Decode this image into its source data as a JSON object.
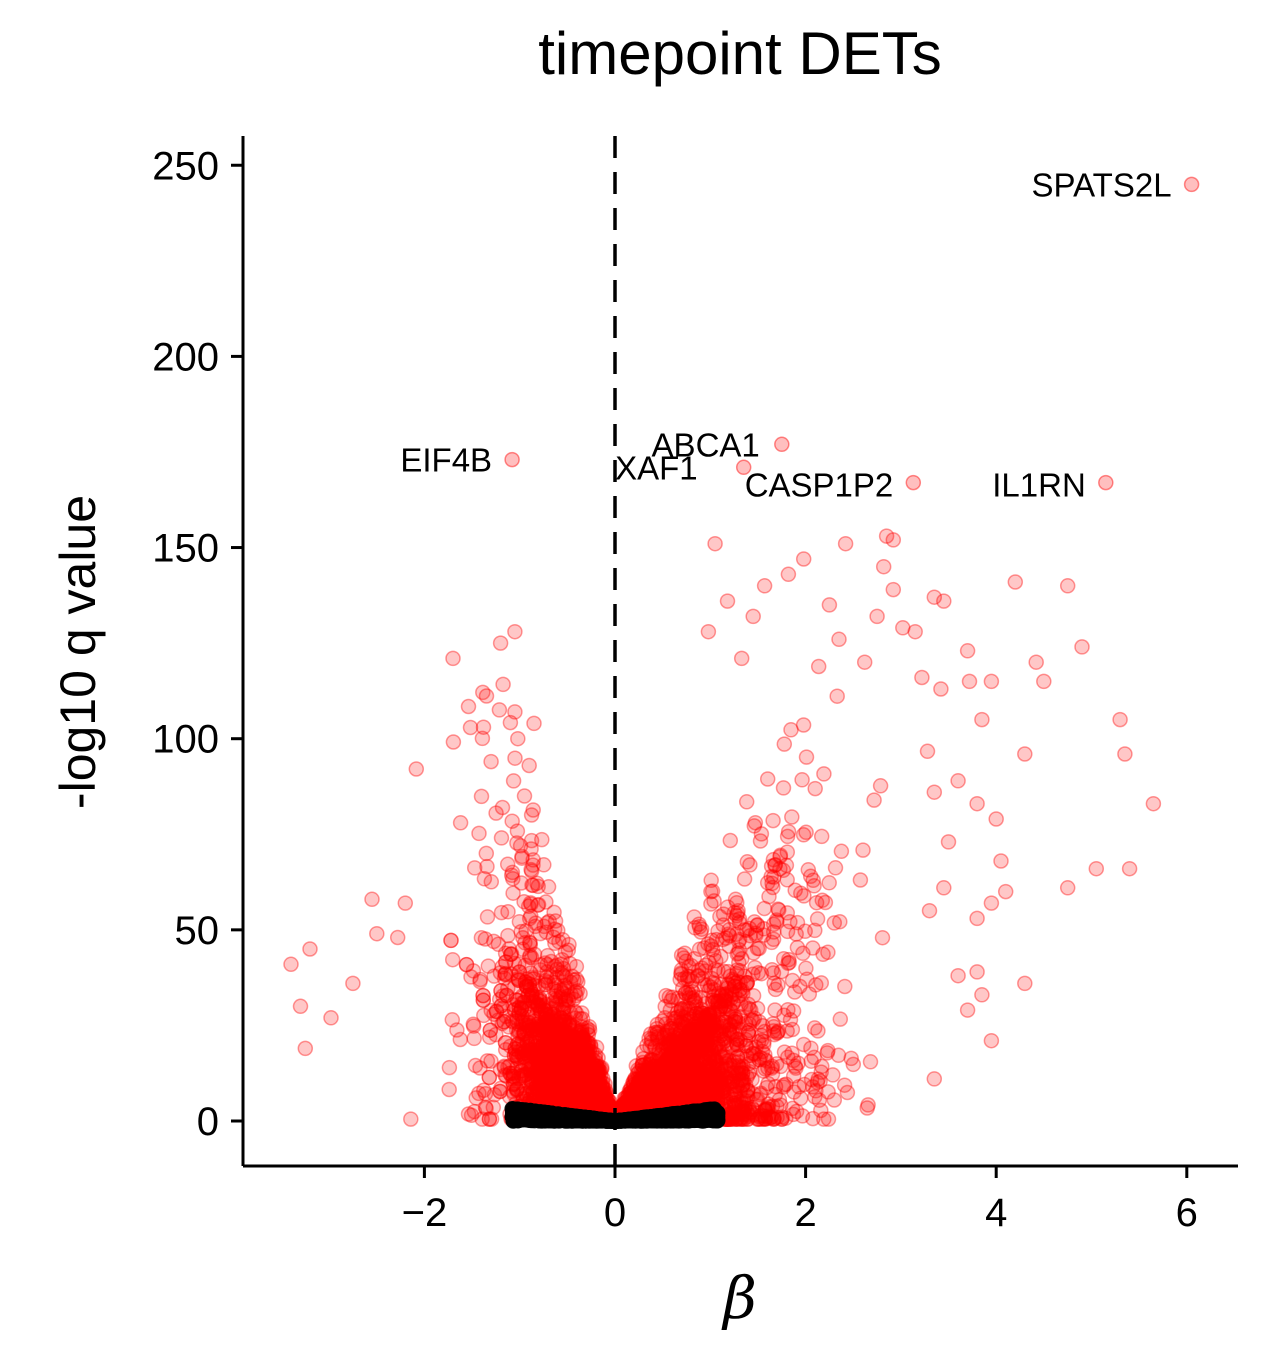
{
  "chart_data": {
    "type": "scatter",
    "title": "timepoint DETs",
    "xlabel": "β",
    "ylabel": "-log10 q value",
    "xlim": [
      -3.8,
      6.5
    ],
    "ylim": [
      -12,
      258
    ],
    "x_ticks": [
      -2,
      0,
      2,
      4,
      6
    ],
    "x_tick_labels": [
      "−2",
      "0",
      "2",
      "4",
      "6"
    ],
    "y_ticks": [
      0,
      50,
      100,
      150,
      200,
      250
    ],
    "y_tick_labels": [
      "0",
      "50",
      "100",
      "150",
      "200",
      "250"
    ],
    "reference_line": {
      "x": 0,
      "style": "dashed"
    },
    "grid": false,
    "legend": "none",
    "colors": {
      "significant": "#ff0000",
      "not_significant": "#000000"
    },
    "labeled_points": [
      {
        "label": "SPATS2L",
        "x": 6.05,
        "y": 245
      },
      {
        "label": "EIF4B",
        "x": -1.08,
        "y": 173
      },
      {
        "label": "ABCA1",
        "x": 1.75,
        "y": 177
      },
      {
        "label": "XAF1",
        "x": 1.35,
        "y": 171
      },
      {
        "label": "CASP1P2",
        "x": 3.13,
        "y": 167
      },
      {
        "label": "IL1RN",
        "x": 5.15,
        "y": 167
      }
    ],
    "outlier_points": [
      [
        -3.4,
        41
      ],
      [
        -3.2,
        45
      ],
      [
        -3.3,
        30
      ],
      [
        -3.25,
        19
      ],
      [
        -2.98,
        27
      ],
      [
        -2.75,
        36
      ],
      [
        -2.55,
        58
      ],
      [
        -2.5,
        49
      ],
      [
        -2.28,
        48
      ],
      [
        -2.2,
        57
      ],
      [
        -1.7,
        121
      ],
      [
        -1.62,
        78
      ],
      [
        -1.38,
        103
      ],
      [
        -1.3,
        94
      ],
      [
        -1.2,
        125
      ],
      [
        -1.05,
        128
      ],
      [
        -1.18,
        82
      ],
      [
        -1.05,
        107
      ],
      [
        -1.02,
        100
      ],
      [
        -0.95,
        85
      ],
      [
        -0.9,
        93
      ],
      [
        -1.35,
        70
      ],
      [
        -0.85,
        104
      ],
      [
        1.05,
        151
      ],
      [
        0.98,
        128
      ],
      [
        1.18,
        136
      ],
      [
        1.33,
        121
      ],
      [
        1.45,
        132
      ],
      [
        1.57,
        140
      ],
      [
        1.82,
        143
      ],
      [
        1.98,
        147
      ],
      [
        2.25,
        135
      ],
      [
        2.42,
        151
      ],
      [
        2.35,
        126
      ],
      [
        2.62,
        120
      ],
      [
        2.75,
        132
      ],
      [
        2.85,
        153
      ],
      [
        2.92,
        152
      ],
      [
        2.82,
        145
      ],
      [
        2.92,
        139
      ],
      [
        3.02,
        129
      ],
      [
        3.15,
        128
      ],
      [
        3.22,
        116
      ],
      [
        3.35,
        137
      ],
      [
        3.45,
        136
      ],
      [
        3.42,
        113
      ],
      [
        3.7,
        123
      ],
      [
        3.72,
        115
      ],
      [
        3.85,
        105
      ],
      [
        3.95,
        115
      ],
      [
        4.2,
        141
      ],
      [
        4.42,
        120
      ],
      [
        4.5,
        115
      ],
      [
        4.75,
        140
      ],
      [
        4.9,
        124
      ],
      [
        5.3,
        105
      ],
      [
        5.35,
        96
      ],
      [
        4.3,
        96
      ],
      [
        5.65,
        83
      ],
      [
        5.05,
        66
      ],
      [
        5.4,
        66
      ],
      [
        4.75,
        61
      ],
      [
        4.1,
        60
      ],
      [
        3.95,
        57
      ],
      [
        4.05,
        68
      ],
      [
        4.0,
        79
      ],
      [
        3.8,
        83
      ],
      [
        3.6,
        89
      ],
      [
        3.5,
        73
      ],
      [
        3.35,
        86
      ],
      [
        4.3,
        36
      ],
      [
        3.95,
        21
      ],
      [
        3.35,
        11
      ],
      [
        3.8,
        39
      ],
      [
        3.85,
        33
      ],
      [
        3.6,
        38
      ],
      [
        3.7,
        29
      ],
      [
        3.3,
        55
      ],
      [
        3.45,
        61
      ],
      [
        3.8,
        53
      ]
    ],
    "points_note_density": "dense red band from β≈-2.8 to 0 and 0 to 3.5, black points (not significant) near y≈0 for β in [-1.05, 1.05]"
  }
}
